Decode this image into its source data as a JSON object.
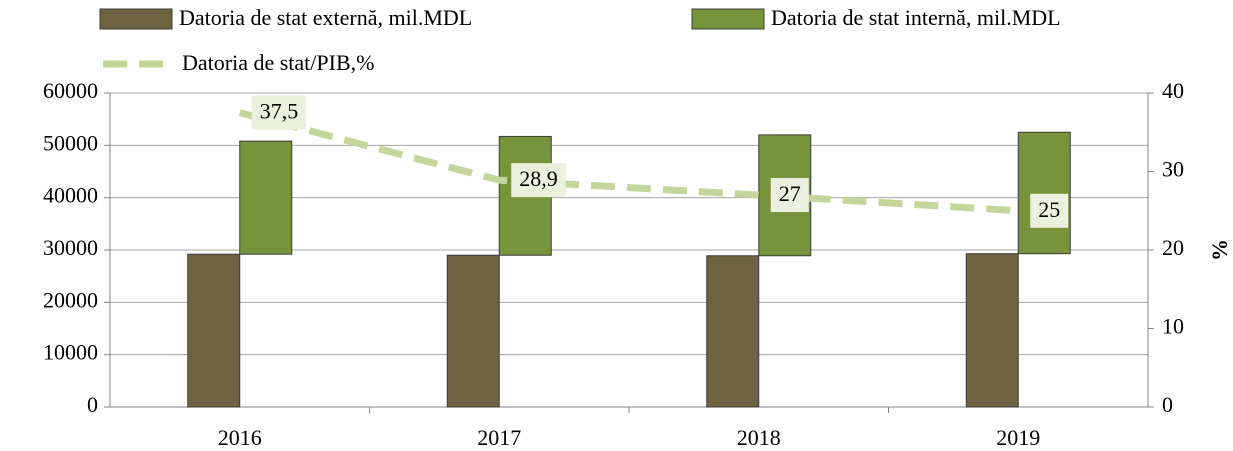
{
  "chart_data": {
    "type": "bar",
    "categories": [
      "2016",
      "2017",
      "2018",
      "2019"
    ],
    "series": [
      {
        "name": "Datoria de stat externă, mil.MDL",
        "color": "#6e6340",
        "values": [
          29200,
          29000,
          28900,
          29300
        ]
      },
      {
        "name": "Datoria de stat internă, mil.MDL",
        "color": "#77933c",
        "values": [
          21600,
          22700,
          23100,
          23200
        ]
      },
      {
        "name": "Datoria de stat/PIB,%",
        "color": "#c3d69b",
        "type": "line",
        "axis": "y2",
        "values": [
          37.5,
          28.9,
          27,
          25
        ],
        "value_labels": [
          "37,5",
          "28,9",
          "27",
          "25"
        ]
      }
    ],
    "stacked": true,
    "ylim": [
      0,
      60000
    ],
    "yticks": [
      0,
      10000,
      20000,
      30000,
      40000,
      50000,
      60000
    ],
    "y2lim": [
      0,
      40
    ],
    "y2ticks": [
      0,
      10,
      20,
      30,
      40
    ],
    "y2label": "%",
    "grid": true,
    "legend": "top"
  }
}
